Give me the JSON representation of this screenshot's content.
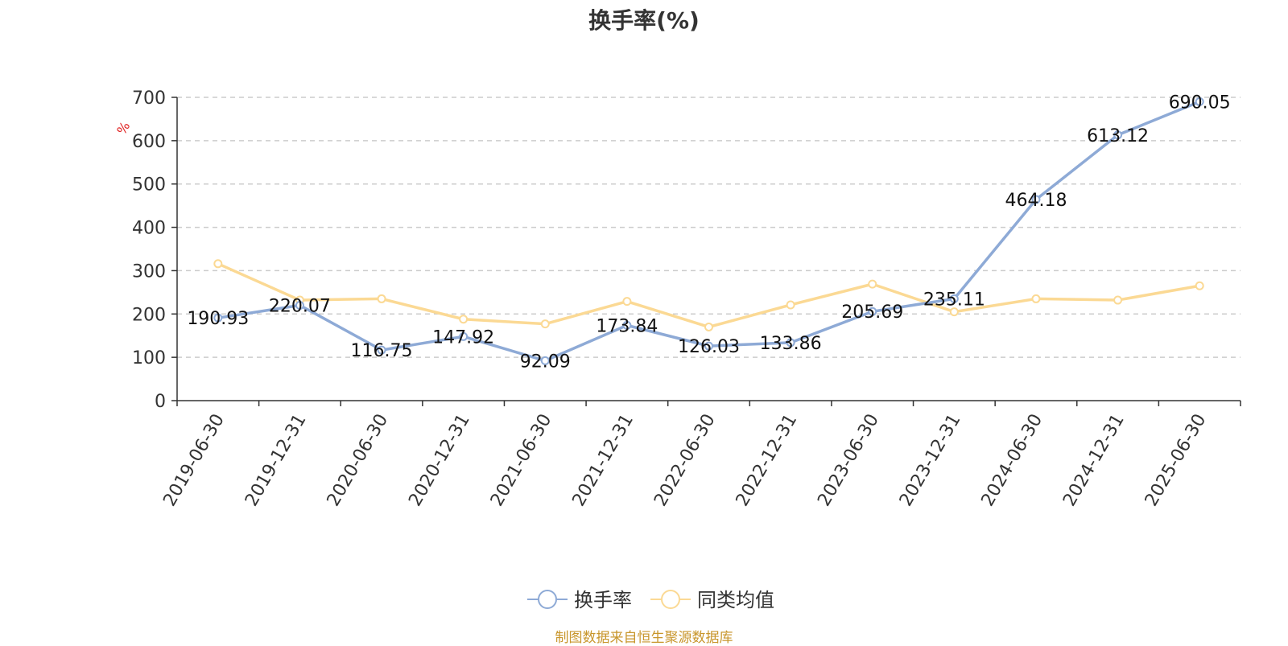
{
  "chart_data": {
    "type": "line",
    "title": "换手率(%)",
    "ylabel": "%",
    "xlabel": "",
    "ylim": [
      0,
      700
    ],
    "yticks": [
      0,
      100,
      200,
      300,
      400,
      500,
      600,
      700
    ],
    "grid": true,
    "legend_position": "bottom-center",
    "categories": [
      "2019-06-30",
      "2019-12-31",
      "2020-06-30",
      "2020-12-31",
      "2021-06-30",
      "2021-12-31",
      "2022-06-30",
      "2022-12-31",
      "2023-06-30",
      "2023-12-31",
      "2024-06-30",
      "2024-12-31",
      "2025-06-30"
    ],
    "series": [
      {
        "name": "换手率",
        "color": "#8eaad6",
        "values": [
          190.93,
          220.07,
          116.75,
          147.92,
          92.09,
          173.84,
          126.03,
          133.86,
          205.69,
          235.11,
          464.18,
          613.12,
          690.05
        ],
        "data_labels": [
          "190.93",
          "220.07",
          "116.75",
          "147.92",
          "92.09",
          "173.84",
          "126.03",
          "133.86",
          "205.69",
          "235.11",
          "464.18",
          "613.12",
          "690.05"
        ]
      },
      {
        "name": "同类均值",
        "color": "#fbd994",
        "values": [
          316,
          232,
          235,
          188,
          177,
          229,
          170,
          221,
          269,
          205,
          235,
          232,
          265
        ]
      }
    ]
  },
  "source_note": "制图数据来自恒生聚源数据库"
}
